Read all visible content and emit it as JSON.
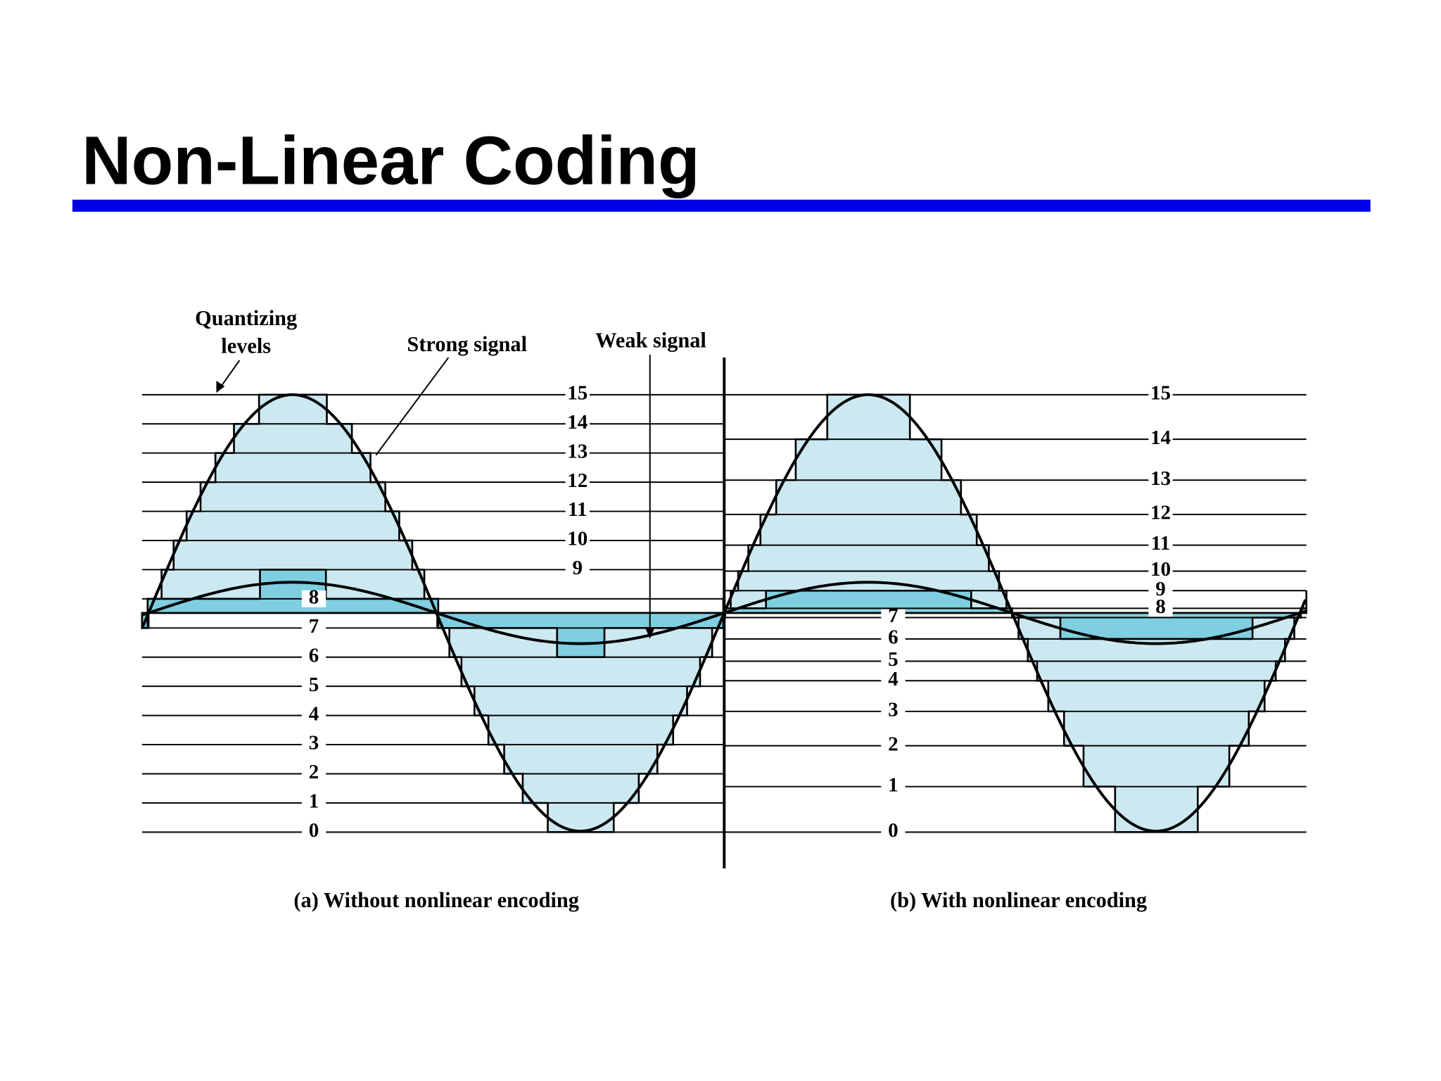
{
  "title": "Non-Linear Coding",
  "annotations": {
    "quantizing_levels": [
      "Quantizing",
      "levels"
    ],
    "strong_signal": "Strong signal",
    "weak_signal": "Weak signal"
  },
  "panels": [
    {
      "caption": "(a) Without nonlinear encoding",
      "levels": [
        "0",
        "1",
        "2",
        "3",
        "4",
        "5",
        "6",
        "7",
        "8",
        "9",
        "10",
        "11",
        "12",
        "13",
        "14",
        "15"
      ]
    },
    {
      "caption": "(b) With nonlinear encoding",
      "levels": [
        "0",
        "1",
        "2",
        "3",
        "4",
        "5",
        "6",
        "7",
        "8",
        "9",
        "10",
        "11",
        "12",
        "13",
        "14",
        "15"
      ]
    }
  ]
}
